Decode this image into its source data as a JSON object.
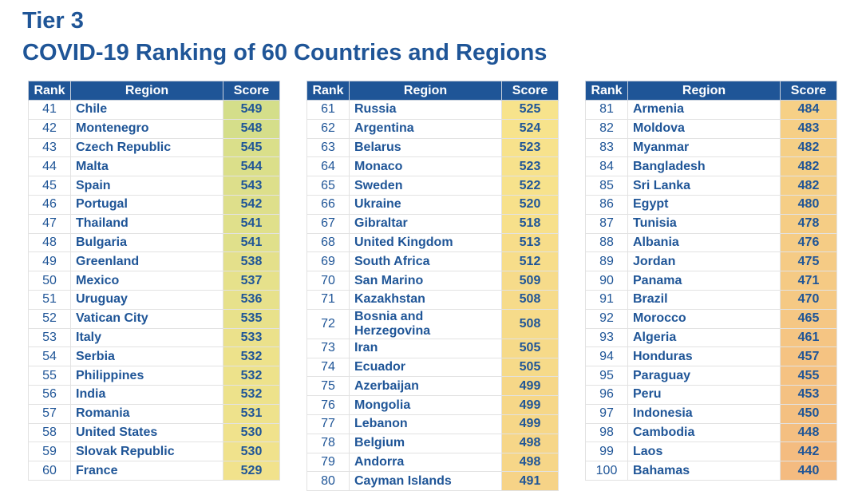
{
  "title": "Tier 3",
  "subtitle": "COVID-19 Ranking of 60 Countries and Regions",
  "headers": {
    "rank": "Rank",
    "region": "Region",
    "score": "Score"
  },
  "colors": {
    "high": "#d4de8a",
    "mid": "#f7e38c",
    "low": "#f4bb80",
    "text": "#1f5597",
    "header": "#1f5597"
  },
  "tables": [
    [
      [
        "41",
        "Chile",
        "549"
      ],
      [
        "42",
        "Montenegro",
        "548"
      ],
      [
        "43",
        "Czech Republic",
        "545"
      ],
      [
        "44",
        "Malta",
        "544"
      ],
      [
        "45",
        "Spain",
        "543"
      ],
      [
        "46",
        "Portugal",
        "542"
      ],
      [
        "47",
        "Thailand",
        "541"
      ],
      [
        "48",
        "Bulgaria",
        "541"
      ],
      [
        "49",
        "Greenland",
        "538"
      ],
      [
        "50",
        "Mexico",
        "537"
      ],
      [
        "51",
        "Uruguay",
        "536"
      ],
      [
        "52",
        "Vatican City",
        "535"
      ],
      [
        "53",
        "Italy",
        "533"
      ],
      [
        "54",
        "Serbia",
        "532"
      ],
      [
        "55",
        "Philippines",
        "532"
      ],
      [
        "56",
        "India",
        "532"
      ],
      [
        "57",
        "Romania",
        "531"
      ],
      [
        "58",
        "United States",
        "530"
      ],
      [
        "59",
        "Slovak Republic",
        "530"
      ],
      [
        "60",
        "France",
        "529"
      ]
    ],
    [
      [
        "61",
        "Russia",
        "525"
      ],
      [
        "62",
        "Argentina",
        "524"
      ],
      [
        "63",
        "Belarus",
        "523"
      ],
      [
        "64",
        "Monaco",
        "523"
      ],
      [
        "65",
        "Sweden",
        "522"
      ],
      [
        "66",
        "Ukraine",
        "520"
      ],
      [
        "67",
        "Gibraltar",
        "518"
      ],
      [
        "68",
        "United Kingdom",
        "513"
      ],
      [
        "69",
        "South Africa",
        "512"
      ],
      [
        "70",
        "San Marino",
        "509"
      ],
      [
        "71",
        "Kazakhstan",
        "508"
      ],
      [
        "72",
        "Bosnia and Herzegovina",
        "508"
      ],
      [
        "73",
        "Iran",
        "505"
      ],
      [
        "74",
        "Ecuador",
        "505"
      ],
      [
        "75",
        "Azerbaijan",
        "499"
      ],
      [
        "76",
        "Mongolia",
        "499"
      ],
      [
        "77",
        "Lebanon",
        "499"
      ],
      [
        "78",
        "Belgium",
        "498"
      ],
      [
        "79",
        "Andorra",
        "498"
      ],
      [
        "80",
        "Cayman Islands",
        "491"
      ]
    ],
    [
      [
        "81",
        "Armenia",
        "484"
      ],
      [
        "82",
        "Moldova",
        "483"
      ],
      [
        "83",
        "Myanmar",
        "482"
      ],
      [
        "84",
        "Bangladesh",
        "482"
      ],
      [
        "85",
        "Sri Lanka",
        "482"
      ],
      [
        "86",
        "Egypt",
        "480"
      ],
      [
        "87",
        "Tunisia",
        "478"
      ],
      [
        "88",
        "Albania",
        "476"
      ],
      [
        "89",
        "Jordan",
        "475"
      ],
      [
        "90",
        "Panama",
        "471"
      ],
      [
        "91",
        "Brazil",
        "470"
      ],
      [
        "92",
        "Morocco",
        "465"
      ],
      [
        "93",
        "Algeria",
        "461"
      ],
      [
        "94",
        "Honduras",
        "457"
      ],
      [
        "95",
        "Paraguay",
        "455"
      ],
      [
        "96",
        "Peru",
        "453"
      ],
      [
        "97",
        "Indonesia",
        "450"
      ],
      [
        "98",
        "Cambodia",
        "448"
      ],
      [
        "99",
        "Laos",
        "442"
      ],
      [
        "100",
        "Bahamas",
        "440"
      ]
    ]
  ]
}
